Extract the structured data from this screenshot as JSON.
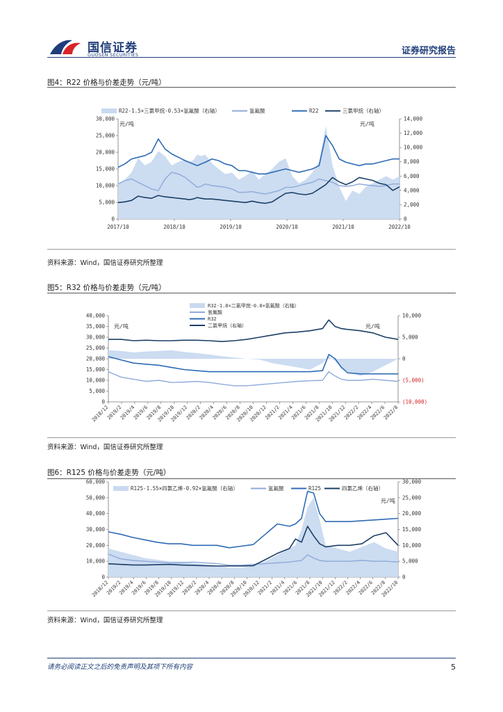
{
  "header": {
    "logo_name": "国信证券",
    "logo_sub": "GUOSEN SECURITIES",
    "report_type": "证券研究报告"
  },
  "figures": [
    {
      "title": "图4：R22 价格与价差走势（元/吨）",
      "source": "资料来源：Wind，国信证券研究所整理"
    },
    {
      "title": "图5：R32 价格与价差走势（元/吨）",
      "source": "资料来源：Wind，国信证券研究所整理"
    },
    {
      "title": "图6：R125 价格与价差走势（元/吨）",
      "source": "资料来源：Wind，国信证券研究所整理"
    }
  ],
  "footer": {
    "disclaimer": "请务必阅读正文之后的免责声明及其项下所有内容",
    "page": "5"
  },
  "colors": {
    "area": "#c9daf0",
    "hf": "#8eaadb",
    "refrigerant": "#2e6bb5",
    "feedstock": "#1b3f66",
    "negative_label": "#d22222"
  },
  "chart_data": [
    {
      "type": "line",
      "title": "图4：R22 价格与价差走势（元/吨）",
      "left_unit": "元/吨",
      "right_unit": "元/吨",
      "x_tick_labels": [
        "2017/10",
        "2018/10",
        "2019/10",
        "2020/10",
        "2021/10",
        "2022/10"
      ],
      "ylim_left": [
        0,
        30000
      ],
      "ylim_right": [
        0,
        14000
      ],
      "y_ticks_left": [
        "30,000",
        "25,000",
        "20,000",
        "15,000",
        "10,000",
        "5,000",
        "0"
      ],
      "y_ticks_right": [
        "14,000",
        "12,000",
        "10,000",
        "8,000",
        "6,000",
        "4,000",
        "2,000",
        "0"
      ],
      "x": [
        0,
        0.5,
        1,
        1.5,
        2,
        2.5,
        3,
        3.5,
        4,
        4.5,
        5,
        5.3,
        5.6,
        5.9,
        6.2,
        6.5,
        7,
        7.5,
        8,
        8.5,
        9,
        9.5,
        10,
        10.5,
        11,
        11.5,
        12,
        12.5,
        13,
        13.5,
        14,
        14.5,
        15,
        15.5,
        16,
        16.5,
        17,
        17.5,
        18,
        18.5,
        19,
        19.5,
        20,
        20.5,
        21
      ],
      "series": [
        {
          "name": "R22-1.5×三氯甲烷-0.53×氢氟酸（右轴）",
          "axis": "right",
          "style": "area",
          "values": [
            5000,
            5500,
            6500,
            8500,
            7500,
            8000,
            9500,
            8800,
            7500,
            8000,
            8300,
            8000,
            8200,
            9000,
            8800,
            9000,
            7800,
            7000,
            6300,
            6500,
            5500,
            6000,
            6800,
            5500,
            6300,
            7000,
            8000,
            8500,
            6000,
            5000,
            5500,
            6500,
            8000,
            13000,
            7500,
            4500,
            2500,
            4000,
            3500,
            4500,
            5000,
            5500,
            6000,
            5500,
            6000
          ]
        },
        {
          "name": "氢氟酸",
          "axis": "left",
          "style": "line",
          "values": [
            10500,
            11500,
            12000,
            11000,
            10000,
            9000,
            8500,
            12000,
            14000,
            13500,
            12500,
            11500,
            10500,
            9500,
            9800,
            10500,
            10000,
            9800,
            9500,
            9000,
            8000,
            8000,
            8200,
            7800,
            7500,
            8000,
            8500,
            9500,
            9500,
            10000,
            10500,
            11000,
            12000,
            11500,
            11000,
            10000,
            9800,
            10000,
            10500,
            10200,
            10000,
            9800,
            10000,
            10500,
            10500
          ]
        },
        {
          "name": "R22",
          "axis": "left",
          "style": "line",
          "values": [
            15500,
            16500,
            18000,
            18500,
            19000,
            20000,
            24000,
            21000,
            19500,
            18500,
            17500,
            17000,
            16500,
            16000,
            16500,
            17000,
            18000,
            17500,
            16500,
            16000,
            14500,
            14500,
            14000,
            13500,
            13500,
            14000,
            14500,
            15000,
            14500,
            14000,
            14500,
            15000,
            16000,
            25000,
            22000,
            18000,
            17000,
            16500,
            16000,
            16500,
            16500,
            17000,
            17500,
            18000,
            18000
          ]
        },
        {
          "name": "三氯甲烷（右轴）",
          "axis": "right",
          "style": "line",
          "values": [
            2300,
            2400,
            2600,
            3200,
            3000,
            2900,
            3300,
            3100,
            3000,
            2900,
            2800,
            2700,
            2800,
            3000,
            2900,
            2800,
            2800,
            2700,
            2600,
            2500,
            2400,
            2300,
            2500,
            2300,
            2200,
            2400,
            3000,
            3600,
            3700,
            3500,
            3400,
            3600,
            4200,
            4800,
            5800,
            5200,
            4800,
            5200,
            5800,
            5600,
            5400,
            5000,
            4800,
            4000,
            4500
          ]
        }
      ]
    },
    {
      "type": "line",
      "title": "图5：R32 价格与价差走势（元/吨）",
      "left_unit": "元/吨",
      "right_unit": "元/吨",
      "x_tick_labels": [
        "2018/12",
        "2019/2",
        "2019/4",
        "2019/6",
        "2019/8",
        "2019/10",
        "2019/12",
        "2020/2",
        "2020/4",
        "2020/6",
        "2020/8",
        "2020/10",
        "2020/12",
        "2021/2",
        "2021/4",
        "2021/6",
        "2021/8",
        "2021/10",
        "2021/12",
        "2022/2",
        "2022/4",
        "2022/6",
        "2022/8"
      ],
      "ylim_left": [
        0,
        40000
      ],
      "ylim_right": [
        -10000,
        10000
      ],
      "y_ticks_left": [
        "40,000",
        "35,000",
        "30,000",
        "25,000",
        "20,000",
        "15,000",
        "10,000",
        "5,000",
        "0"
      ],
      "y_ticks_right": [
        "10,000",
        "5,000",
        "0",
        "(5,000)",
        "(10,000)"
      ],
      "x": [
        0,
        1,
        2,
        3,
        4,
        5,
        6,
        7,
        8,
        9,
        10,
        11,
        12,
        13,
        14,
        15,
        16,
        17,
        17.5,
        18,
        18.5,
        19,
        20,
        21,
        22,
        23
      ],
      "series": [
        {
          "name": "R32-1.8×二氯甲烷-0.8×氢氟酸（右轴）",
          "axis": "right",
          "style": "area",
          "values": [
            2000,
            1800,
            1500,
            1700,
            1800,
            2000,
            1600,
            1300,
            1000,
            600,
            300,
            0,
            -200,
            -1000,
            -1500,
            -2000,
            -2500,
            -1000,
            500,
            -500,
            -2000,
            -3000,
            -4000,
            -3000,
            -1500,
            0
          ]
        },
        {
          "name": "氢氟酸",
          "axis": "left",
          "style": "line",
          "values": [
            14000,
            11500,
            10500,
            9500,
            10000,
            9000,
            9200,
            9500,
            9000,
            8200,
            7500,
            7500,
            8000,
            8500,
            9000,
            9500,
            9800,
            10000,
            14000,
            12000,
            10500,
            10000,
            10000,
            10500,
            10000,
            9500
          ]
        },
        {
          "name": "R32",
          "axis": "left",
          "style": "line",
          "values": [
            21000,
            19500,
            18000,
            17500,
            17000,
            16000,
            15000,
            14500,
            14000,
            14000,
            14000,
            14000,
            14000,
            14000,
            14000,
            14000,
            14000,
            14500,
            22000,
            20000,
            16000,
            13500,
            13000,
            13000,
            13000,
            13000
          ]
        },
        {
          "name": "二氯甲烷（右轴）",
          "axis": "right",
          "style": "line",
          "values": [
            4500,
            4500,
            4200,
            4300,
            4200,
            4200,
            4300,
            4300,
            4200,
            4000,
            4200,
            4500,
            5000,
            5500,
            6000,
            6200,
            6500,
            7000,
            9000,
            7500,
            7000,
            6800,
            6500,
            6000,
            5000,
            4500
          ]
        }
      ]
    },
    {
      "type": "line",
      "title": "图6：R125 价格与价差走势（元/吨）",
      "left_unit": "元/吨",
      "right_unit": "元/吨",
      "x_tick_labels": [
        "2018/12",
        "2019/2",
        "2019/4",
        "2019/6",
        "2019/8",
        "2019/10",
        "2019/12",
        "2020/2",
        "2020/4",
        "2020/6",
        "2020/8",
        "2020/10",
        "2020/12",
        "2021/2",
        "2021/4",
        "2021/6",
        "2021/8",
        "2021/10",
        "2021/12",
        "2022/2",
        "2022/4",
        "2022/6",
        "2022/8",
        "2022/10"
      ],
      "ylim_left": [
        0,
        60000
      ],
      "ylim_right": [
        0,
        30000
      ],
      "y_ticks_left": [
        "60,000",
        "50,000",
        "40,000",
        "30,000",
        "20,000",
        "10,000",
        "0"
      ],
      "y_ticks_right": [
        "30,000",
        "25,000",
        "20,000",
        "15,000",
        "10,000",
        "5,000",
        "0"
      ],
      "x": [
        0,
        1,
        2,
        3,
        4,
        5,
        6,
        7,
        8,
        9,
        10,
        11,
        12,
        13,
        14,
        15,
        15.5,
        16,
        16.5,
        17,
        17.5,
        18,
        19,
        20,
        21,
        22,
        23,
        24
      ],
      "series": [
        {
          "name": "R125-1.55×四氯乙烯-0.92×氢氟酸（右轴）",
          "axis": "right",
          "style": "area",
          "values": [
            9000,
            8000,
            7000,
            6000,
            5500,
            5000,
            5000,
            4500,
            4000,
            3500,
            3000,
            3000,
            3500,
            5000,
            7000,
            9000,
            10000,
            15000,
            22000,
            25000,
            18000,
            10000,
            9000,
            8000,
            9500,
            11000,
            9000,
            8000
          ]
        },
        {
          "name": "氢氟酸",
          "axis": "left",
          "style": "line",
          "values": [
            14500,
            11500,
            10500,
            10000,
            9500,
            9000,
            9000,
            9500,
            9000,
            8500,
            7500,
            7500,
            8000,
            8500,
            9000,
            9500,
            10000,
            10500,
            14000,
            12000,
            10500,
            10000,
            10000,
            10000,
            10500,
            10000,
            10000,
            9500
          ]
        },
        {
          "name": "R125",
          "axis": "left",
          "style": "line",
          "values": [
            28500,
            27000,
            25000,
            23500,
            22000,
            21000,
            21000,
            20000,
            20000,
            20000,
            18500,
            19500,
            20500,
            27000,
            33500,
            32000,
            33500,
            37000,
            54000,
            53000,
            40000,
            35000,
            35000,
            35000,
            35500,
            36000,
            36500,
            37000
          ]
        },
        {
          "name": "四氯乙烯（右轴）",
          "axis": "right",
          "style": "line",
          "values": [
            4200,
            4000,
            3800,
            3800,
            3900,
            4000,
            3800,
            3700,
            3600,
            3500,
            3500,
            3500,
            3600,
            5500,
            7500,
            9000,
            12000,
            11000,
            16000,
            13000,
            10500,
            9500,
            10000,
            10000,
            10500,
            13000,
            14000,
            10000
          ]
        }
      ]
    }
  ]
}
